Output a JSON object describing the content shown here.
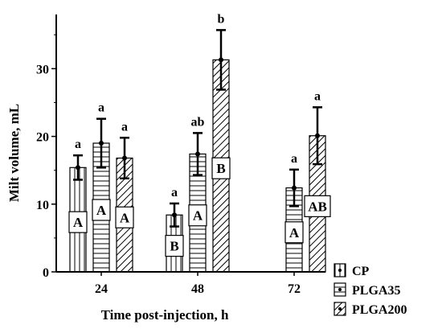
{
  "chart_data": {
    "type": "bar",
    "xlabel": "Time post-injection, h",
    "ylabel": "Milt volume, mL",
    "ylim": [
      0,
      38
    ],
    "yticks": [
      0,
      10,
      20,
      30
    ],
    "categories": [
      "24",
      "48",
      "72"
    ],
    "legend_position": "bottom-right",
    "series": [
      {
        "name": "CP",
        "pattern": "vertical-lines",
        "values": [
          15.4,
          8.4,
          null
        ],
        "errors": [
          1.8,
          1.7,
          null
        ],
        "sig_letters": [
          "a",
          "a",
          null
        ],
        "box_labels": [
          "A",
          "B",
          null
        ]
      },
      {
        "name": "PLGA35",
        "pattern": "horizontal-lines",
        "values": [
          19.0,
          17.4,
          12.4
        ],
        "errors": [
          3.6,
          3.1,
          2.7
        ],
        "sig_letters": [
          "a",
          "ab",
          "a"
        ],
        "box_labels": [
          "A",
          "A",
          "A"
        ]
      },
      {
        "name": "PLGA200",
        "pattern": "diagonal-lines",
        "values": [
          16.8,
          31.3,
          20.1
        ],
        "errors": [
          3.0,
          4.4,
          4.2
        ],
        "sig_letters": [
          "a",
          "b",
          "a"
        ],
        "box_labels": [
          "A",
          "B",
          "AB"
        ]
      }
    ]
  }
}
